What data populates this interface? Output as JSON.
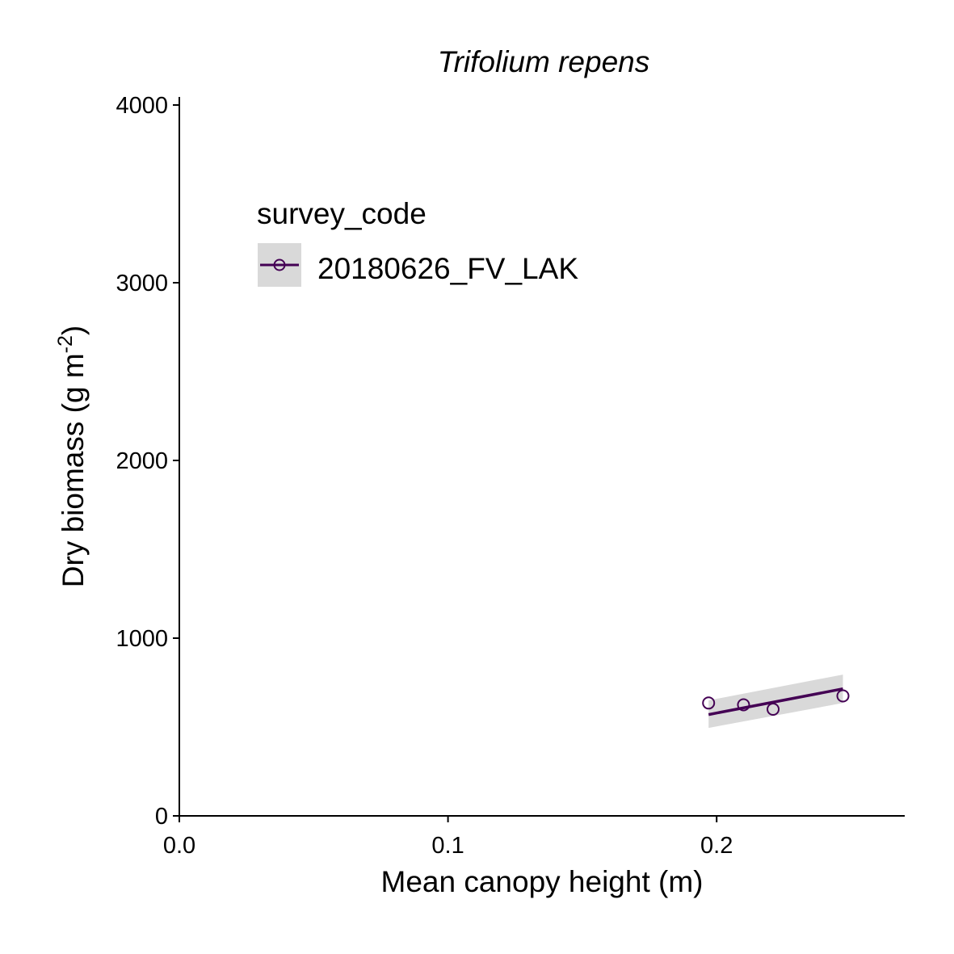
{
  "chart_data": {
    "type": "scatter",
    "title": "Trifolium repens",
    "xlabel": "Mean canopy height (m)",
    "ylabel": {
      "main": "Dry biomass (g m",
      "superscript": "-2",
      "close": ")"
    },
    "xlim": [
      0,
      0.27
    ],
    "ylim": [
      0,
      4000
    ],
    "x_ticks": [
      0.0,
      0.1,
      0.2
    ],
    "x_tick_labels": [
      "0.0",
      "0.1",
      "0.2"
    ],
    "y_ticks": [
      0,
      1000,
      2000,
      3000,
      4000
    ],
    "y_tick_labels": [
      "0",
      "1000",
      "2000",
      "3000",
      "4000"
    ],
    "grid": false,
    "legend": {
      "title": "survey_code",
      "placement": "top-left",
      "entries": [
        "20180626_FV_LAK"
      ]
    },
    "series": [
      {
        "name": "20180626_FV_LAK",
        "color": "#440154",
        "marker": "open-circle",
        "points": [
          {
            "x": 0.197,
            "y": 635
          },
          {
            "x": 0.21,
            "y": 625
          },
          {
            "x": 0.221,
            "y": 600
          },
          {
            "x": 0.247,
            "y": 675
          }
        ],
        "fit_line": {
          "x": [
            0.197,
            0.247
          ],
          "y": [
            570,
            715
          ]
        },
        "confidence_band": {
          "x": [
            0.197,
            0.247
          ],
          "lower": [
            495,
            635
          ],
          "upper": [
            650,
            795
          ],
          "color": "#d9d9d9"
        }
      }
    ]
  }
}
